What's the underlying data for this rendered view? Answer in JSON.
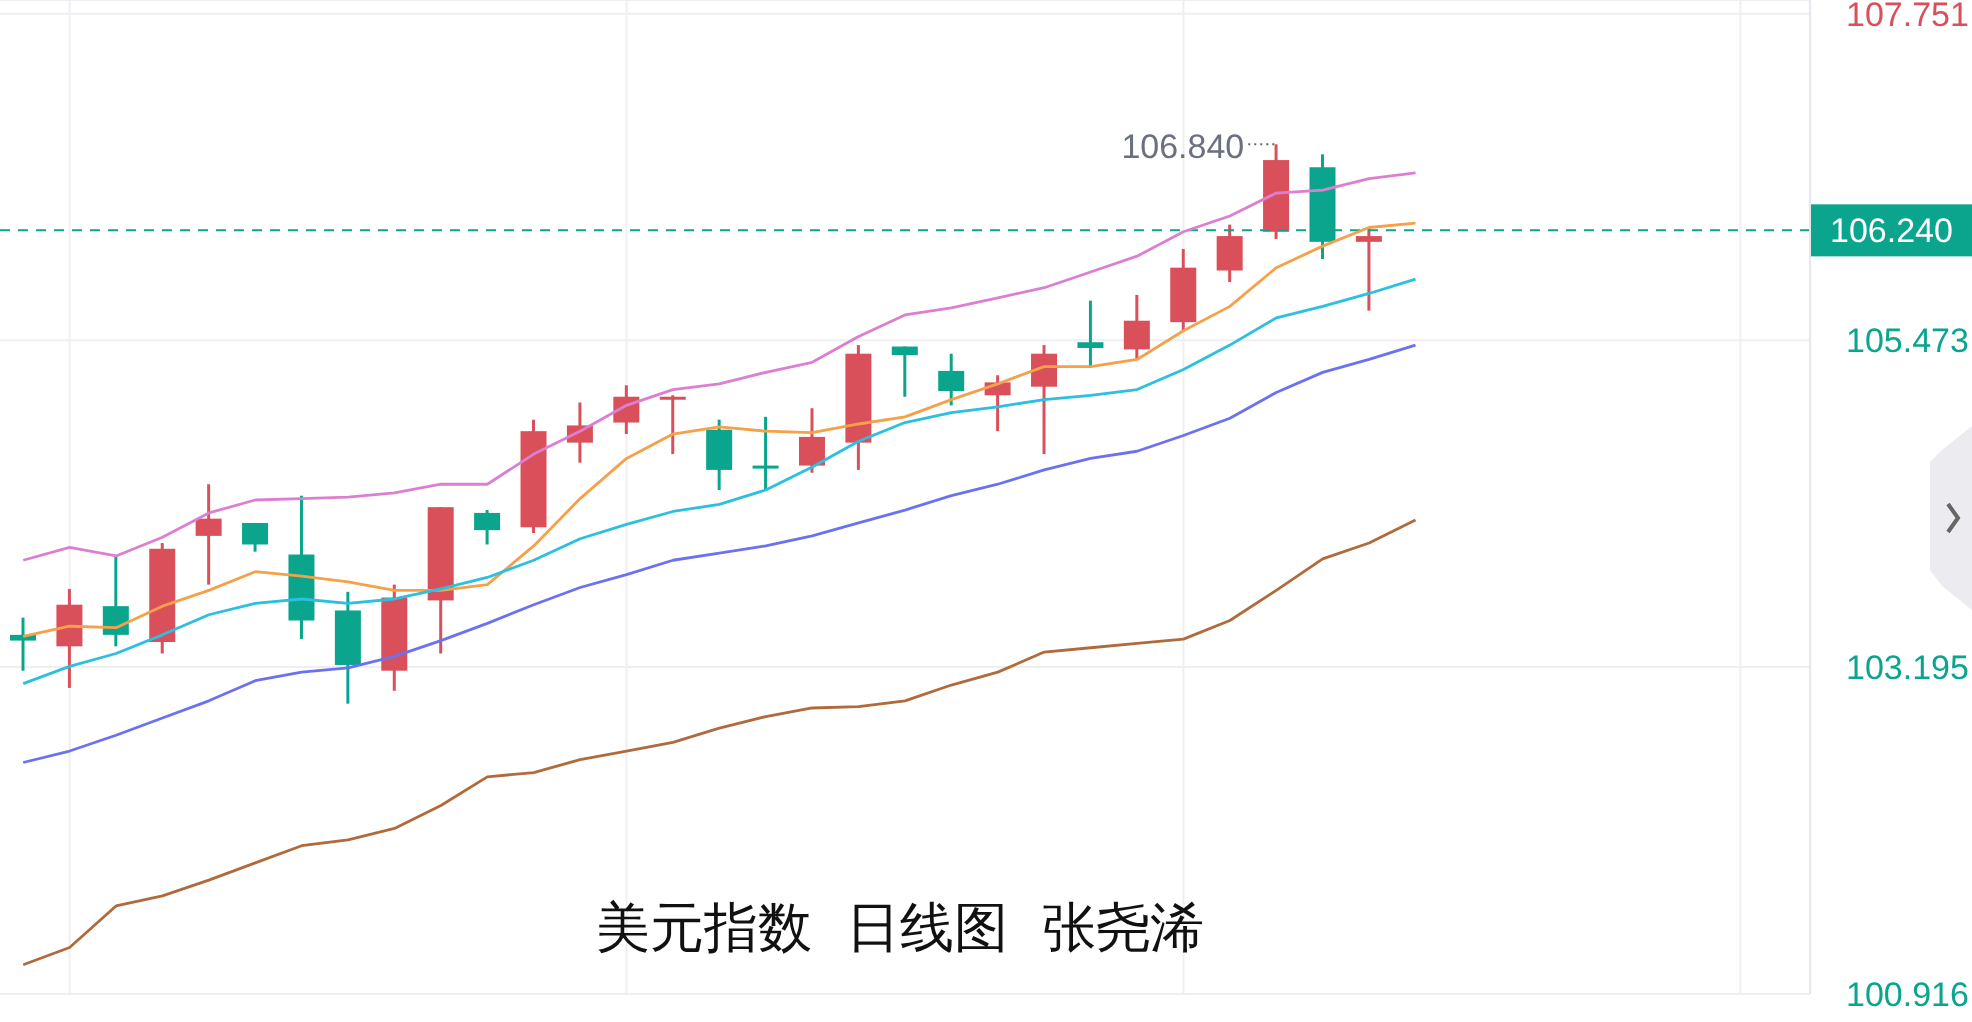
{
  "chart_data": {
    "type": "candlestick",
    "title": "美元指数  日线图  张尧浠",
    "categories": [
      null,
      null,
      null,
      null,
      null,
      null,
      null,
      null,
      null,
      null,
      null,
      null,
      null,
      null,
      null,
      null,
      null,
      null,
      null,
      null,
      null,
      null,
      null,
      null,
      null,
      null,
      null,
      null,
      null,
      null,
      null,
      null,
      null,
      null,
      null,
      null,
      null,
      null,
      null
    ],
    "ohlc": [
      [
        103.42,
        103.54,
        103.17,
        103.38
      ],
      [
        103.34,
        103.74,
        103.05,
        103.63
      ],
      [
        103.62,
        103.97,
        103.34,
        103.42
      ],
      [
        103.37,
        104.06,
        103.29,
        104.02
      ],
      [
        104.11,
        104.47,
        103.77,
        104.23
      ],
      [
        104.2,
        104.2,
        104.0,
        104.05
      ],
      [
        103.98,
        104.39,
        103.39,
        103.52
      ],
      [
        103.59,
        103.72,
        102.94,
        103.21
      ],
      [
        103.17,
        103.77,
        103.03,
        103.68
      ],
      [
        103.66,
        104.31,
        103.29,
        104.31
      ],
      [
        104.27,
        104.29,
        104.05,
        104.15
      ],
      [
        104.17,
        104.92,
        104.13,
        104.84
      ],
      [
        104.76,
        105.04,
        104.62,
        104.88
      ],
      [
        104.9,
        105.16,
        104.82,
        105.08
      ],
      [
        105.07,
        105.09,
        104.68,
        105.08
      ],
      [
        104.85,
        104.92,
        104.43,
        104.57
      ],
      [
        104.6,
        104.94,
        104.43,
        104.59
      ],
      [
        104.6,
        105.0,
        104.55,
        104.8
      ],
      [
        104.76,
        105.44,
        104.57,
        105.38
      ],
      [
        105.43,
        105.43,
        105.08,
        105.37
      ],
      [
        105.26,
        105.38,
        105.02,
        105.12
      ],
      [
        105.09,
        105.23,
        104.84,
        105.18
      ],
      [
        105.15,
        105.44,
        104.68,
        105.38
      ],
      [
        105.46,
        105.75,
        105.29,
        105.42
      ],
      [
        105.41,
        105.79,
        105.34,
        105.61
      ],
      [
        105.6,
        106.11,
        105.54,
        105.98
      ],
      [
        105.96,
        106.28,
        105.88,
        106.2
      ],
      [
        106.23,
        106.84,
        106.18,
        106.73
      ],
      [
        106.68,
        106.77,
        106.04,
        106.16
      ],
      [
        106.16,
        106.26,
        105.68,
        106.2
      ],
      null,
      null,
      null,
      null,
      null,
      null,
      null,
      null,
      null
    ],
    "series": [
      {
        "type": "line",
        "color": "#dc7fd2",
        "values": [
          103.94,
          104.03,
          103.97,
          104.1,
          104.27,
          104.36,
          104.37,
          104.38,
          104.41,
          104.47,
          104.47,
          104.68,
          104.84,
          105.02,
          105.13,
          105.17,
          105.25,
          105.32,
          105.5,
          105.65,
          105.7,
          105.77,
          105.84,
          105.95,
          106.06,
          106.23,
          106.34,
          106.5,
          106.52,
          106.6,
          106.64,
          null,
          null,
          null,
          null,
          null,
          null,
          null,
          null
        ]
      },
      {
        "type": "line",
        "color": "#f5a14a",
        "values": [
          103.41,
          103.48,
          103.47,
          103.62,
          103.73,
          103.86,
          103.83,
          103.79,
          103.73,
          103.73,
          103.77,
          104.04,
          104.37,
          104.65,
          104.82,
          104.87,
          104.84,
          104.83,
          104.89,
          104.94,
          105.06,
          105.17,
          105.29,
          105.29,
          105.34,
          105.54,
          105.71,
          105.98,
          106.13,
          106.26,
          106.29,
          null,
          null,
          null,
          null,
          null,
          null,
          null,
          null
        ]
      },
      {
        "type": "line",
        "color": "#2bbfe0",
        "values": [
          103.08,
          103.2,
          103.29,
          103.42,
          103.56,
          103.64,
          103.67,
          103.64,
          103.67,
          103.74,
          103.82,
          103.94,
          104.09,
          104.19,
          104.28,
          104.33,
          104.43,
          104.59,
          104.77,
          104.9,
          104.97,
          105.01,
          105.06,
          105.09,
          105.13,
          105.27,
          105.44,
          105.63,
          105.71,
          105.8,
          105.9,
          null,
          null,
          null,
          null,
          null,
          null,
          null,
          null
        ]
      },
      {
        "type": "line",
        "color": "#6b72f0",
        "values": [
          102.53,
          102.61,
          102.72,
          102.84,
          102.96,
          103.1,
          103.16,
          103.19,
          103.27,
          103.38,
          103.5,
          103.63,
          103.75,
          103.84,
          103.94,
          103.99,
          104.04,
          104.11,
          104.2,
          104.29,
          104.39,
          104.47,
          104.57,
          104.65,
          104.7,
          104.81,
          104.93,
          105.11,
          105.25,
          105.34,
          105.44,
          null,
          null,
          null,
          null,
          null,
          null,
          null,
          null
        ]
      },
      {
        "type": "line",
        "color": "#b06a3c",
        "values": [
          101.12,
          101.24,
          101.53,
          101.6,
          101.71,
          101.83,
          101.95,
          101.99,
          102.07,
          102.23,
          102.43,
          102.46,
          102.55,
          102.61,
          102.67,
          102.77,
          102.85,
          102.91,
          102.92,
          102.96,
          103.07,
          103.16,
          103.3,
          103.33,
          103.36,
          103.39,
          103.52,
          103.73,
          103.95,
          104.06,
          104.22,
          null,
          null,
          null,
          null,
          null,
          null,
          null,
          null
        ]
      }
    ],
    "ylim": [
      100.916,
      107.846
    ],
    "yticks": [
      107.751,
      105.473,
      103.195,
      100.916
    ],
    "ref_lines": [
      {
        "axis": "y",
        "value": 106.24,
        "label": "106.240",
        "color": "#0aa58c",
        "line_style": "dashed"
      }
    ],
    "annotations": [
      "106.840"
    ],
    "grid": true,
    "marker": "none",
    "line_style": "solid"
  }
}
